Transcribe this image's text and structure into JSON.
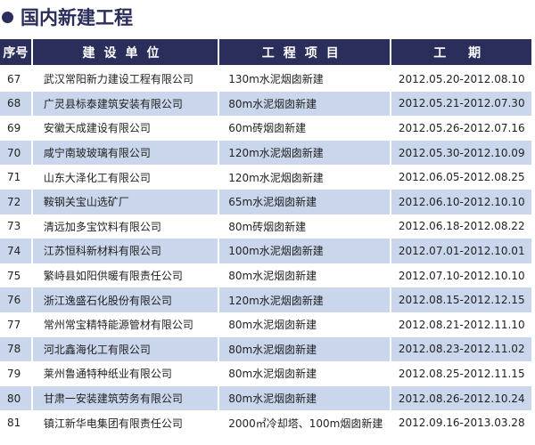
{
  "title": "国内新建工程",
  "headers": [
    "序号",
    "建设单位",
    "工程项目",
    "工 期"
  ],
  "rows": [
    {
      "no": "67",
      "unit": "武汉常阳新力建设工程有限公司",
      "project": "130m水泥烟囱新建",
      "period": "2012.05.20-2012.08.10"
    },
    {
      "no": "68",
      "unit": "广灵县标泰建筑安装有限公司",
      "project": "80m水泥烟囱新建",
      "period": "2012.05.21-2012.07.30"
    },
    {
      "no": "69",
      "unit": "安徽天成建设有限公司",
      "project": "60m砖烟囱新建",
      "period": "2012.05.26-2012.07.16"
    },
    {
      "no": "70",
      "unit": "咸宁南玻玻璃有限公司",
      "project": "120m水泥烟囱新建",
      "period": "2012.05.30-2012.10.09"
    },
    {
      "no": "71",
      "unit": "山东大泽化工有限公司",
      "project": "120m水泥烟囱新建",
      "period": "2012.06.05-2012.08.25"
    },
    {
      "no": "72",
      "unit": "鞍钢关宝山选矿厂",
      "project": "65m水泥烟囱新建",
      "period": "2012.06.10-2012.10.10"
    },
    {
      "no": "73",
      "unit": "清远加多宝饮料有限公司",
      "project": "80m砖烟囱新建",
      "period": "2012.06.18-2012.08.22"
    },
    {
      "no": "74",
      "unit": "江苏恒科新材料有限公司",
      "project": "100m水泥烟囱新建",
      "period": "2012.07.01-2012.10.01"
    },
    {
      "no": "75",
      "unit": "繁峙县如阳供暖有限责任公司",
      "project": "80m水泥烟囱新建",
      "period": "2012.07.10-2012.10.10"
    },
    {
      "no": "76",
      "unit": "浙江逸盛石化股份有限公司",
      "project": "120m水泥烟囱新建",
      "period": "2012.08.15-2012.12.15"
    },
    {
      "no": "77",
      "unit": "常州常宝精特能源管材有限公司",
      "project": "80m水泥烟囱新建",
      "period": "2012.08.21-2012.11.10"
    },
    {
      "no": "78",
      "unit": "河北鑫海化工有限公司",
      "project": "80m水泥烟囱新建",
      "period": "2012.08.23-2012.11.02"
    },
    {
      "no": "79",
      "unit": "莱州鲁通特种纸业有限公司",
      "project": "80m水泥烟囱新建",
      "period": "2012.08.25-2012.11.15"
    },
    {
      "no": "80",
      "unit": "甘肃一安装建筑劳务有限公司",
      "project": "80m水泥烟囱新建",
      "period": "2012.08.26-2012.10.24"
    },
    {
      "no": "81",
      "unit": "镇江新华电集团有限责任公司",
      "project": "2000㎡冷却塔、100m烟囱新建",
      "period": "2012.09.16-2013.03.28"
    }
  ],
  "colors": {
    "header": "#2b2d5b",
    "alt_row": "#c9d6ec"
  }
}
